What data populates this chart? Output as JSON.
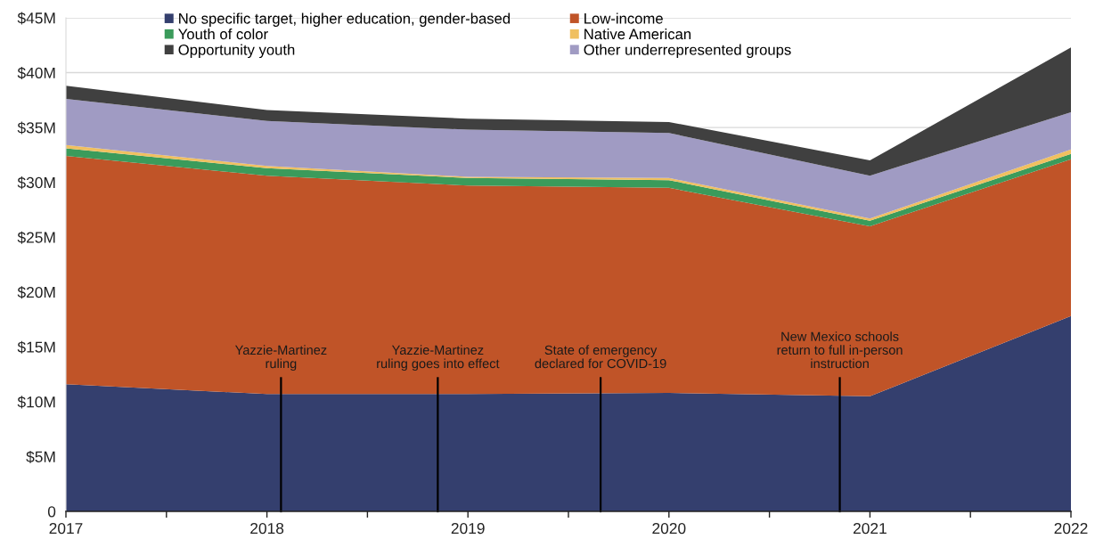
{
  "chart_data": {
    "type": "area",
    "stacked": true,
    "x": [
      2017,
      2018,
      2019,
      2020,
      2021,
      2022
    ],
    "xlim": [
      2017,
      2022
    ],
    "xticks": [
      2017,
      {
        "value": 2017.5,
        "label": null
      },
      2018,
      {
        "value": 2018.5,
        "label": null
      },
      2019,
      {
        "value": 2019.5,
        "label": null
      },
      2020,
      {
        "value": 2020.5,
        "label": null
      },
      2021,
      {
        "value": 2021.5,
        "label": null
      },
      2022
    ],
    "ylim": [
      0,
      45
    ],
    "yticks": [
      0,
      {
        "value": 5,
        "label": "$5M"
      },
      {
        "value": 10,
        "label": "$10M"
      },
      {
        "value": 15,
        "label": "$15M"
      },
      {
        "value": 20,
        "label": "$20M"
      },
      {
        "value": 25,
        "label": "$25M"
      },
      {
        "value": 30,
        "label": "$30M"
      },
      {
        "value": 35,
        "label": "$35M"
      },
      {
        "value": 40,
        "label": "$40M"
      },
      {
        "value": 45,
        "label": "$45M"
      }
    ],
    "grid": "y",
    "legend": "top",
    "series": [
      {
        "name": "No specific target, higher education, gender-based",
        "color": "#343f6e",
        "values": [
          11.6,
          10.7,
          10.7,
          10.8,
          10.5,
          17.8
        ]
      },
      {
        "name": "Low-income",
        "color": "#c05428",
        "values": [
          20.8,
          19.9,
          19.0,
          18.7,
          15.5,
          14.3
        ]
      },
      {
        "name": "Youth of color",
        "color": "#3b9b5b",
        "values": [
          0.7,
          0.7,
          0.7,
          0.7,
          0.5,
          0.5
        ]
      },
      {
        "name": "Native American",
        "color": "#f0c060",
        "values": [
          0.3,
          0.2,
          0.1,
          0.2,
          0.2,
          0.4
        ]
      },
      {
        "name": "Other underrepresented groups",
        "color": "#a09bc3",
        "values": [
          4.2,
          4.1,
          4.3,
          4.1,
          3.9,
          3.4
        ]
      },
      {
        "name": "Opportunity youth",
        "color": "#404040",
        "values": [
          1.2,
          1.0,
          1.0,
          1.0,
          1.4,
          5.9
        ]
      }
    ],
    "ref_lines": [
      {
        "axis": "x",
        "value": 2018.07,
        "label": "Yazzie-Martinez\nruling"
      },
      {
        "axis": "x",
        "value": 2018.85,
        "label": "Yazzie-Martinez\nruling goes into effect"
      },
      {
        "axis": "x",
        "value": 2019.66,
        "label": "State of emergency\ndeclared for COVID-19"
      },
      {
        "axis": "x",
        "value": 2020.85,
        "label": "New Mexico schools\nreturn to full in-person\ninstruction"
      }
    ]
  }
}
